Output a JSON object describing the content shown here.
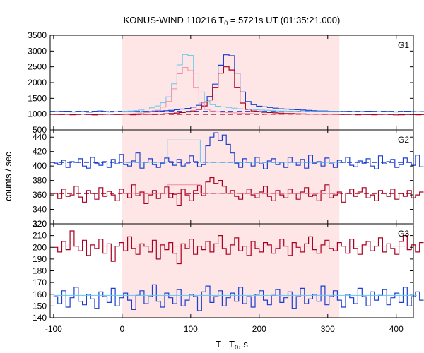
{
  "chart_data": {
    "type": "line",
    "title_prefix": "KONUS-WIND 110216 T",
    "title_sub": "0",
    "title_suffix": " = 5721s UT (01:35:21.000)",
    "xlabel_prefix": "T - T",
    "xlabel_sub": "0",
    "xlabel_suffix": ", s",
    "ylabel": "counts / sec",
    "xlim": [
      -105,
      425
    ],
    "x_ticks": [
      -100,
      0,
      100,
      200,
      300,
      400
    ],
    "highlight_interval": [
      0,
      317
    ],
    "colors": {
      "highlight": "#ffe6e6",
      "blue": "#1a3fd0",
      "red": "#a80020",
      "lightblue": "#63c8f0",
      "pink": "#f08aa8",
      "magenta": "#d0208a"
    },
    "panels": [
      {
        "label": "G1",
        "ylim": [
          500,
          3500
        ],
        "y_ticks": [
          500,
          1000,
          1500,
          2000,
          2500,
          3000,
          3500
        ],
        "blue_background": 1085,
        "red_background": 995,
        "series": [
          {
            "name": "",
            "color": "blue",
            "x_start": -100,
            "step": 8,
            "values": [
              1080,
              1075,
              1090,
              1070,
              1085,
              1080,
              1065,
              1090,
              1100,
              1080,
              1070,
              1075,
              1085,
              1090,
              1080,
              1070,
              1080,
              1085,
              1095,
              1100,
              1110,
              1120,
              1140,
              1160,
              1180,
              1220,
              1280,
              1380,
              1560,
              1950,
              2550,
              2880,
              2850,
              2300,
              1700,
              1400,
              1300,
              1250,
              1230,
              1210,
              1190,
              1170,
              1160,
              1150,
              1140,
              1130,
              1120,
              1110,
              1100,
              1100,
              1090,
              1090,
              1080,
              1085,
              1080,
              1075,
              1080,
              1090,
              1080,
              1075,
              1085,
              1080,
              1070,
              1080,
              1090,
              1080,
              1075,
              1080,
              1070,
              1075,
              1080,
              1070,
              1080,
              1085,
              1080,
              1070
            ]
          },
          {
            "name": "",
            "color": "red",
            "x_start": -100,
            "step": 8,
            "values": [
              990,
              985,
              995,
              980,
              990,
              1000,
              985,
              975,
              990,
              995,
              1000,
              985,
              990,
              995,
              980,
              990,
              1000,
              995,
              990,
              1000,
              1010,
              1020,
              1035,
              1050,
              1070,
              1100,
              1150,
              1260,
              1450,
              1850,
              2300,
              2500,
              2400,
              1850,
              1350,
              1150,
              1100,
              1080,
              1060,
              1050,
              1040,
              1030,
              1020,
              1020,
              1010,
              1005,
              1000,
              1000,
              995,
              990,
              995,
              990,
              985,
              990,
              995,
              980,
              990,
              985,
              980,
              990,
              995,
              985,
              975,
              980,
              990,
              985,
              980,
              985,
              975,
              980,
              985,
              990,
              980,
              975,
              985,
              980
            ]
          },
          {
            "name": "",
            "color": "lightblue",
            "x_start": 0,
            "step": 8,
            "values": [
              1090,
              1100,
              1110,
              1130,
              1160,
              1200,
              1260,
              1360,
              1550,
              1960,
              2560,
              2890,
              2860,
              2300,
              1700,
              1400,
              1300,
              1250,
              1230,
              1210,
              1190,
              1170,
              1160,
              1150,
              1140,
              1130,
              1120,
              1110,
              1100,
              1100,
              1090,
              1090,
              1085,
              1085,
              1085,
              1085,
              1085,
              1085,
              1085,
              1085
            ]
          },
          {
            "name": "",
            "color": "pink",
            "x_start": 0,
            "step": 8,
            "values": [
              1000,
              1005,
              1015,
              1030,
              1050,
              1080,
              1120,
              1220,
              1400,
              1800,
              2280,
              2480,
              2380,
              1850,
              1350,
              1150,
              1100,
              1080,
              1060,
              1050,
              1040,
              1030,
              1020,
              1020,
              1010,
              1005,
              1000,
              1000,
              995,
              995,
              995,
              995,
              995,
              995,
              995,
              995,
              995,
              995,
              995,
              995
            ]
          }
        ]
      },
      {
        "label": "G2",
        "ylim": [
          320,
          450
        ],
        "y_ticks": [
          320,
          340,
          360,
          380,
          400,
          420,
          440
        ],
        "blue_background": 405,
        "red_background": 362,
        "series": [
          {
            "name": "",
            "color": "blue",
            "x_start": -100,
            "step": 6,
            "values": [
              404,
              402,
              408,
              398,
              406,
              405,
              410,
              400,
              397,
              412,
              404,
              401,
              406,
              398,
              409,
              403,
              416,
              402,
              400,
              407,
              418,
              397,
              405,
              410,
              402,
              398,
              404,
              411,
              406,
              401,
              409,
              400,
              403,
              414,
              406,
              399,
              402,
              428,
              440,
              446,
              435,
              443,
              430,
              418,
              404,
              398,
              410,
              405,
              400,
              412,
              403,
              396,
              407,
              410,
              402,
              405,
              398,
              412,
              405,
              401,
              409,
              397,
              415,
              404,
              406,
              400,
              411,
              403,
              398,
              408,
              405,
              412,
              401,
              399,
              407,
              404,
              410,
              400,
              396,
              414,
              403,
              406,
              409,
              398,
              402,
              411,
              405,
              401,
              415,
              399
            ]
          },
          {
            "name": "",
            "color": "red",
            "x_start": -100,
            "step": 6,
            "values": [
              362,
              355,
              368,
              358,
              360,
              372,
              357,
              350,
              366,
              362,
              354,
              370,
              358,
              365,
              360,
              352,
              368,
              362,
              356,
              374,
              359,
              364,
              348,
              360,
              366,
              355,
              362,
              371,
              356,
              361,
              345,
              368,
              360,
              352,
              366,
              373,
              359,
              378,
              384,
              376,
              380,
              372,
              362,
              366,
              358,
              354,
              362,
              368,
              360,
              356,
              364,
              372,
              358,
              352,
              366,
              360,
              356,
              368,
              362,
              354,
              364,
              370,
              358,
              360,
              352,
              366,
              374,
              356,
              360,
              364,
              350,
              362,
              368,
              358,
              364,
              370,
              356,
              360,
              352,
              366,
              362,
              358,
              368,
              354,
              362,
              358,
              366,
              356,
              360,
              364
            ]
          },
          {
            "name": "",
            "color": "lightblue",
            "x_start": 0,
            "step": 6,
            "values": [
              405,
              405,
              405,
              405,
              405,
              405,
              405,
              405,
              405,
              405,
              405,
              436,
              436,
              436,
              436,
              436,
              436,
              436,
              436,
              405,
              405,
              405,
              405,
              405,
              405,
              405,
              405,
              405,
              405,
              405,
              405,
              405,
              405,
              405,
              405,
              405,
              405,
              405,
              405,
              405,
              405,
              405,
              405,
              405,
              405,
              405,
              405,
              405,
              405,
              405,
              405,
              405,
              405
            ]
          },
          {
            "name": "",
            "color": "pink",
            "x_start": 0,
            "step": 6,
            "values": [
              362,
              362,
              362,
              362,
              362,
              362,
              362,
              362,
              362,
              362,
              362,
              374,
              374,
              374,
              374,
              374,
              374,
              374,
              374,
              362,
              362,
              362,
              362,
              362,
              362,
              362,
              362,
              362,
              362,
              362,
              362,
              362,
              362,
              362,
              362,
              362,
              362,
              362,
              362,
              362,
              362,
              362,
              362,
              362,
              362,
              362,
              362,
              362,
              362,
              362,
              362,
              362,
              362
            ]
          }
        ]
      },
      {
        "label": "G3",
        "ylim": [
          140,
          220
        ],
        "y_ticks": [
          140,
          150,
          160,
          170,
          180,
          190,
          200,
          210,
          220
        ],
        "series": [
          {
            "name": "",
            "color": "red",
            "x_start": -100,
            "step": 6,
            "values": [
              200,
              196,
              205,
              198,
              214,
              201,
              197,
              206,
              193,
              202,
              199,
              207,
              195,
              203,
              188,
              201,
              204,
              197,
              209,
              199,
              194,
              203,
              201,
              196,
              206,
              190,
              202,
              198,
              204,
              195,
              186,
              203,
              199,
              207,
              194,
              201,
              198,
              205,
              196,
              203,
              210,
              199,
              194,
              202,
              208,
              197,
              201,
              193,
              205,
              199,
              196,
              204,
              202,
              195,
              199,
              207,
              201,
              193,
              204,
              200,
              196,
              203,
              209,
              198,
              195,
              202,
              206,
              199,
              197,
              204,
              201,
              195,
              207,
              199,
              194,
              202,
              205,
              197,
              201,
              208,
              196,
              203,
              199,
              194,
              205,
              210,
              198,
              202,
              196,
              204
            ]
          },
          {
            "name": "",
            "color": "blue",
            "x_start": -100,
            "step": 6,
            "values": [
              158,
              152,
              163,
              149,
              157,
              166,
              154,
              151,
              160,
              156,
              148,
              162,
              158,
              153,
              165,
              150,
              157,
              161,
              155,
              147,
              159,
              163,
              152,
              158,
              168,
              154,
              149,
              161,
              157,
              152,
              164,
              150,
              155,
              160,
              158,
              146,
              162,
              167,
              153,
              158,
              163,
              150,
              157,
              161,
              154,
              166,
              152,
              158,
              149,
              160,
              163,
              155,
              151,
              159,
              164,
              153,
              157,
              162,
              148,
              158,
              165,
              152,
              156,
              160,
              154,
              167,
              151,
              158,
              163,
              155,
              149,
              160,
              157,
              152,
              165,
              158,
              150,
              162,
              155,
              159,
              164,
              151,
              157,
              161,
              153,
              166,
              150,
              158,
              162,
              155
            ]
          },
          {
            "name": "",
            "color": "pink",
            "x_start": -100,
            "step": 530,
            "values": [
              201
            ]
          },
          {
            "name": "",
            "color": "lightblue",
            "x_start": -100,
            "step": 530,
            "values": [
              159
            ]
          }
        ]
      }
    ]
  }
}
